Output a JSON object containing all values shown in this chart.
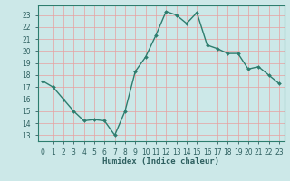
{
  "x": [
    0,
    1,
    2,
    3,
    4,
    5,
    6,
    7,
    8,
    9,
    10,
    11,
    12,
    13,
    14,
    15,
    16,
    17,
    18,
    19,
    20,
    21,
    22,
    23
  ],
  "y": [
    17.5,
    17.0,
    16.0,
    15.0,
    14.2,
    14.3,
    14.2,
    13.0,
    15.0,
    18.3,
    19.5,
    21.3,
    23.3,
    23.0,
    22.3,
    23.2,
    20.5,
    20.2,
    19.8,
    19.8,
    18.5,
    18.7,
    18.0,
    17.3
  ],
  "line_color": "#2d7d6e",
  "marker": "D",
  "marker_size": 2.0,
  "bg_color": "#cce8e8",
  "grid_color_major": "#f0b0b0",
  "grid_color_minor": "#e8d8d8",
  "axis_color": "#2d7d6e",
  "text_color": "#2d5f5f",
  "ylabel_ticks": [
    13,
    14,
    15,
    16,
    17,
    18,
    19,
    20,
    21,
    22,
    23
  ],
  "xlabel_ticks": [
    0,
    1,
    2,
    3,
    4,
    5,
    6,
    7,
    8,
    9,
    10,
    11,
    12,
    13,
    14,
    15,
    16,
    17,
    18,
    19,
    20,
    21,
    22,
    23
  ],
  "xlabel": "Humidex (Indice chaleur)",
  "xlim": [
    -0.5,
    23.5
  ],
  "ylim": [
    12.5,
    23.8
  ]
}
